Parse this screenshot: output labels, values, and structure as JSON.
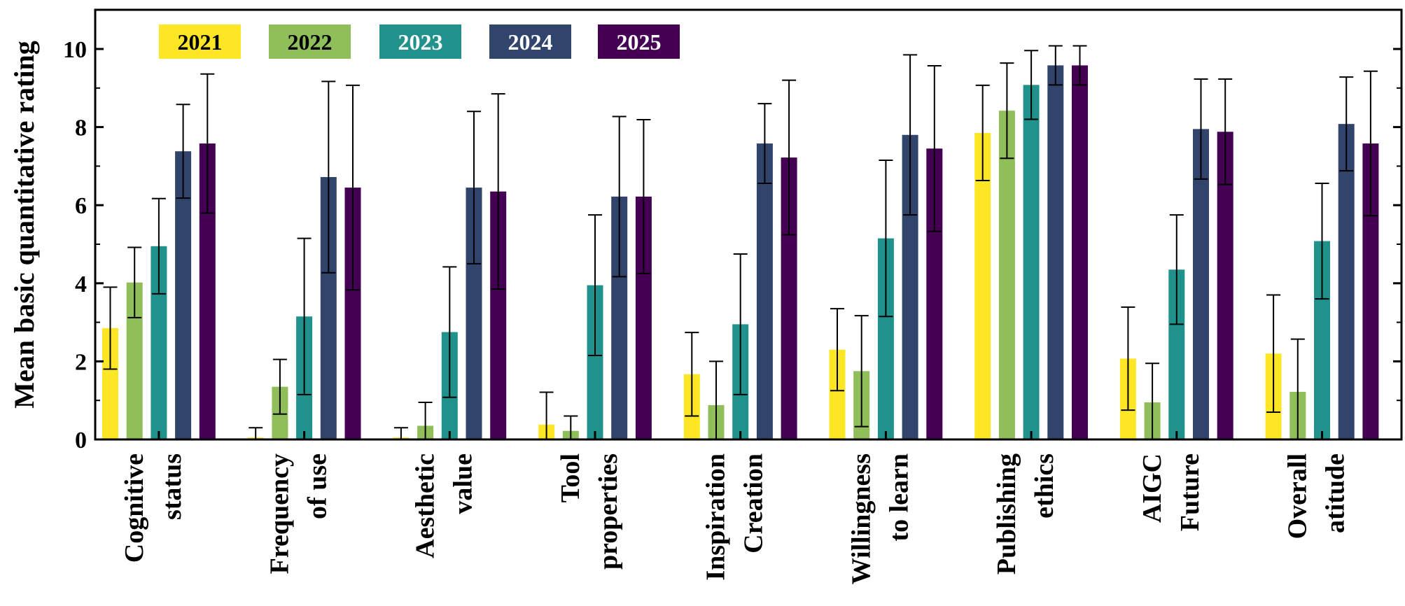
{
  "chart_data": {
    "type": "bar",
    "title": "",
    "xlabel": "",
    "ylabel": "Mean basic quantitative rating",
    "ylim": [
      0,
      11
    ],
    "yticks": [
      0,
      2,
      4,
      6,
      8,
      10
    ],
    "legend_position": "top-left",
    "categories": [
      [
        "Cognitive",
        "status"
      ],
      [
        "Frequency",
        "of use"
      ],
      [
        "Aesthetic",
        "value"
      ],
      [
        "Tool",
        "properties"
      ],
      [
        "Inspiration",
        "Creation"
      ],
      [
        "Willingness",
        "to learn"
      ],
      [
        "Publishing",
        "ethics"
      ],
      [
        "AIGC",
        "Future"
      ],
      [
        "Overall",
        "atitude"
      ]
    ],
    "series": [
      {
        "name": "2021",
        "color": "#fde725",
        "text_color": "#000000",
        "values": [
          2.85,
          0.05,
          0.05,
          0.38,
          1.67,
          2.3,
          7.85,
          2.07,
          2.2
        ],
        "errors": [
          1.05,
          0.25,
          0.25,
          0.83,
          1.07,
          1.05,
          1.22,
          1.32,
          1.5
        ]
      },
      {
        "name": "2022",
        "color": "#8fbe5a",
        "text_color": "#000000",
        "values": [
          4.02,
          1.35,
          0.35,
          0.22,
          0.88,
          1.75,
          8.42,
          0.95,
          1.22
        ],
        "errors": [
          0.9,
          0.7,
          0.6,
          0.38,
          1.12,
          1.42,
          1.22,
          1.0,
          1.35
        ]
      },
      {
        "name": "2023",
        "color": "#21918c",
        "text_color": "#ffffff",
        "values": [
          4.95,
          3.15,
          2.75,
          3.95,
          2.95,
          5.15,
          9.08,
          4.35,
          5.08
        ],
        "errors": [
          1.22,
          2.0,
          1.67,
          1.8,
          1.8,
          2.0,
          0.88,
          1.4,
          1.48
        ]
      },
      {
        "name": "2024",
        "color": "#31446b",
        "text_color": "#ffffff",
        "values": [
          7.38,
          6.72,
          6.45,
          6.22,
          7.58,
          7.8,
          9.58,
          7.95,
          8.08
        ],
        "errors": [
          1.2,
          2.45,
          1.95,
          2.05,
          1.02,
          2.05,
          0.5,
          1.28,
          1.2
        ]
      },
      {
        "name": "2025",
        "color": "#440154",
        "text_color": "#ffffff",
        "values": [
          7.58,
          6.45,
          6.35,
          6.22,
          7.22,
          7.45,
          9.58,
          7.88,
          7.58
        ],
        "errors": [
          1.78,
          2.62,
          2.5,
          1.97,
          1.98,
          2.12,
          0.5,
          1.35,
          1.85
        ]
      }
    ]
  }
}
